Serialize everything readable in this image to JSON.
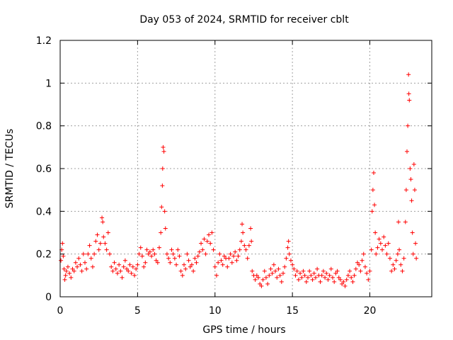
{
  "chart_data": {
    "type": "scatter",
    "title": "Day 053 of 2024, SRMTID for receiver cblt",
    "xlabel": "GPS time / hours",
    "ylabel": "SRMTID / TECUs",
    "xlim": [
      0,
      24
    ],
    "ylim": [
      0,
      1.2
    ],
    "xticks": [
      0,
      5,
      10,
      15,
      20
    ],
    "xtick_labels": [
      "0",
      "5",
      "10",
      "15",
      "20"
    ],
    "yticks": [
      0,
      0.2,
      0.4,
      0.6,
      0.8,
      1,
      1.2
    ],
    "ytick_labels": [
      "0",
      "0.2",
      "0.4",
      "0.6",
      "0.8",
      "1",
      "1.2"
    ],
    "grid": true,
    "marker": "+",
    "series_color": "#ff0000",
    "series": [
      {
        "name": "SRMTID",
        "points": [
          [
            0.05,
            0.17
          ],
          [
            0.1,
            0.22
          ],
          [
            0.15,
            0.25
          ],
          [
            0.2,
            0.19
          ],
          [
            0.25,
            0.13
          ],
          [
            0.3,
            0.08
          ],
          [
            0.35,
            0.1
          ],
          [
            0.4,
            0.12
          ],
          [
            0.5,
            0.14
          ],
          [
            0.6,
            0.11
          ],
          [
            0.7,
            0.09
          ],
          [
            0.8,
            0.13
          ],
          [
            0.9,
            0.12
          ],
          [
            1.0,
            0.16
          ],
          [
            1.1,
            0.14
          ],
          [
            1.2,
            0.18
          ],
          [
            1.3,
            0.15
          ],
          [
            1.4,
            0.12
          ],
          [
            1.5,
            0.2
          ],
          [
            1.6,
            0.16
          ],
          [
            1.7,
            0.13
          ],
          [
            1.8,
            0.2
          ],
          [
            1.9,
            0.24
          ],
          [
            2.0,
            0.18
          ],
          [
            2.1,
            0.14
          ],
          [
            2.2,
            0.2
          ],
          [
            2.3,
            0.26
          ],
          [
            2.4,
            0.29
          ],
          [
            2.5,
            0.22
          ],
          [
            2.6,
            0.25
          ],
          [
            2.7,
            0.37
          ],
          [
            2.75,
            0.35
          ],
          [
            2.8,
            0.28
          ],
          [
            2.9,
            0.25
          ],
          [
            3.0,
            0.22
          ],
          [
            3.1,
            0.3
          ],
          [
            3.2,
            0.2
          ],
          [
            3.3,
            0.14
          ],
          [
            3.4,
            0.12
          ],
          [
            3.5,
            0.16
          ],
          [
            3.6,
            0.13
          ],
          [
            3.7,
            0.11
          ],
          [
            3.8,
            0.15
          ],
          [
            3.9,
            0.12
          ],
          [
            4.0,
            0.09
          ],
          [
            4.1,
            0.14
          ],
          [
            4.2,
            0.17
          ],
          [
            4.3,
            0.13
          ],
          [
            4.4,
            0.12
          ],
          [
            4.5,
            0.15
          ],
          [
            4.6,
            0.11
          ],
          [
            4.7,
            0.14
          ],
          [
            4.8,
            0.1
          ],
          [
            4.9,
            0.13
          ],
          [
            5.0,
            0.15
          ],
          [
            5.1,
            0.2
          ],
          [
            5.2,
            0.23
          ],
          [
            5.3,
            0.19
          ],
          [
            5.4,
            0.14
          ],
          [
            5.5,
            0.16
          ],
          [
            5.6,
            0.22
          ],
          [
            5.7,
            0.2
          ],
          [
            5.8,
            0.21
          ],
          [
            5.9,
            0.19
          ],
          [
            6.0,
            0.22
          ],
          [
            6.1,
            0.2
          ],
          [
            6.2,
            0.17
          ],
          [
            6.3,
            0.16
          ],
          [
            6.4,
            0.23
          ],
          [
            6.5,
            0.3
          ],
          [
            6.55,
            0.42
          ],
          [
            6.6,
            0.52
          ],
          [
            6.62,
            0.6
          ],
          [
            6.65,
            0.7
          ],
          [
            6.7,
            0.68
          ],
          [
            6.75,
            0.4
          ],
          [
            6.8,
            0.32
          ],
          [
            6.9,
            0.2
          ],
          [
            7.0,
            0.18
          ],
          [
            7.1,
            0.16
          ],
          [
            7.2,
            0.22
          ],
          [
            7.3,
            0.2
          ],
          [
            7.4,
            0.18
          ],
          [
            7.5,
            0.15
          ],
          [
            7.6,
            0.22
          ],
          [
            7.7,
            0.19
          ],
          [
            7.8,
            0.12
          ],
          [
            7.9,
            0.1
          ],
          [
            8.0,
            0.15
          ],
          [
            8.1,
            0.13
          ],
          [
            8.2,
            0.2
          ],
          [
            8.3,
            0.17
          ],
          [
            8.4,
            0.14
          ],
          [
            8.5,
            0.15
          ],
          [
            8.6,
            0.12
          ],
          [
            8.7,
            0.18
          ],
          [
            8.8,
            0.16
          ],
          [
            8.9,
            0.19
          ],
          [
            9.0,
            0.21
          ],
          [
            9.1,
            0.25
          ],
          [
            9.2,
            0.22
          ],
          [
            9.3,
            0.27
          ],
          [
            9.4,
            0.2
          ],
          [
            9.5,
            0.26
          ],
          [
            9.6,
            0.29
          ],
          [
            9.7,
            0.25
          ],
          [
            9.8,
            0.3
          ],
          [
            9.9,
            0.22
          ],
          [
            10.0,
            0.14
          ],
          [
            10.1,
            0.1
          ],
          [
            10.2,
            0.16
          ],
          [
            10.3,
            0.2
          ],
          [
            10.4,
            0.17
          ],
          [
            10.5,
            0.15
          ],
          [
            10.6,
            0.19
          ],
          [
            10.7,
            0.18
          ],
          [
            10.8,
            0.14
          ],
          [
            10.9,
            0.18
          ],
          [
            11.0,
            0.2
          ],
          [
            11.1,
            0.16
          ],
          [
            11.2,
            0.19
          ],
          [
            11.3,
            0.21
          ],
          [
            11.4,
            0.17
          ],
          [
            11.5,
            0.19
          ],
          [
            11.6,
            0.22
          ],
          [
            11.7,
            0.26
          ],
          [
            11.75,
            0.34
          ],
          [
            11.8,
            0.3
          ],
          [
            11.9,
            0.24
          ],
          [
            12.0,
            0.22
          ],
          [
            12.1,
            0.18
          ],
          [
            12.2,
            0.24
          ],
          [
            12.3,
            0.32
          ],
          [
            12.35,
            0.26
          ],
          [
            12.4,
            0.12
          ],
          [
            12.5,
            0.1
          ],
          [
            12.6,
            0.08
          ],
          [
            12.7,
            0.1
          ],
          [
            12.8,
            0.09
          ],
          [
            12.9,
            0.06
          ],
          [
            13.0,
            0.05
          ],
          [
            13.1,
            0.08
          ],
          [
            13.2,
            0.12
          ],
          [
            13.3,
            0.09
          ],
          [
            13.4,
            0.06
          ],
          [
            13.5,
            0.1
          ],
          [
            13.6,
            0.13
          ],
          [
            13.7,
            0.11
          ],
          [
            13.8,
            0.15
          ],
          [
            13.9,
            0.12
          ],
          [
            14.0,
            0.09
          ],
          [
            14.1,
            0.13
          ],
          [
            14.2,
            0.1
          ],
          [
            14.3,
            0.07
          ],
          [
            14.4,
            0.11
          ],
          [
            14.5,
            0.14
          ],
          [
            14.6,
            0.18
          ],
          [
            14.7,
            0.23
          ],
          [
            14.75,
            0.26
          ],
          [
            14.8,
            0.2
          ],
          [
            14.9,
            0.17
          ],
          [
            15.0,
            0.15
          ],
          [
            15.1,
            0.13
          ],
          [
            15.2,
            0.1
          ],
          [
            15.3,
            0.12
          ],
          [
            15.4,
            0.08
          ],
          [
            15.5,
            0.11
          ],
          [
            15.6,
            0.09
          ],
          [
            15.7,
            0.12
          ],
          [
            15.8,
            0.1
          ],
          [
            15.9,
            0.07
          ],
          [
            16.0,
            0.09
          ],
          [
            16.1,
            0.12
          ],
          [
            16.2,
            0.1
          ],
          [
            16.3,
            0.08
          ],
          [
            16.4,
            0.11
          ],
          [
            16.5,
            0.09
          ],
          [
            16.6,
            0.13
          ],
          [
            16.7,
            0.1
          ],
          [
            16.8,
            0.07
          ],
          [
            16.9,
            0.1
          ],
          [
            17.0,
            0.12
          ],
          [
            17.1,
            0.09
          ],
          [
            17.2,
            0.11
          ],
          [
            17.3,
            0.08
          ],
          [
            17.4,
            0.1
          ],
          [
            17.5,
            0.13
          ],
          [
            17.6,
            0.09
          ],
          [
            17.7,
            0.07
          ],
          [
            17.8,
            0.11
          ],
          [
            17.9,
            0.12
          ],
          [
            18.0,
            0.09
          ],
          [
            18.1,
            0.08
          ],
          [
            18.2,
            0.06
          ],
          [
            18.3,
            0.07
          ],
          [
            18.4,
            0.05
          ],
          [
            18.5,
            0.08
          ],
          [
            18.6,
            0.1
          ],
          [
            18.7,
            0.12
          ],
          [
            18.8,
            0.09
          ],
          [
            18.9,
            0.07
          ],
          [
            19.0,
            0.1
          ],
          [
            19.1,
            0.13
          ],
          [
            19.2,
            0.16
          ],
          [
            19.3,
            0.15
          ],
          [
            19.4,
            0.12
          ],
          [
            19.5,
            0.17
          ],
          [
            19.6,
            0.2
          ],
          [
            19.7,
            0.14
          ],
          [
            19.8,
            0.11
          ],
          [
            19.9,
            0.08
          ],
          [
            20.0,
            0.12
          ],
          [
            20.1,
            0.22
          ],
          [
            20.15,
            0.4
          ],
          [
            20.2,
            0.5
          ],
          [
            20.25,
            0.58
          ],
          [
            20.3,
            0.43
          ],
          [
            20.35,
            0.3
          ],
          [
            20.4,
            0.2
          ],
          [
            20.5,
            0.23
          ],
          [
            20.6,
            0.27
          ],
          [
            20.7,
            0.25
          ],
          [
            20.8,
            0.22
          ],
          [
            20.9,
            0.28
          ],
          [
            21.0,
            0.24
          ],
          [
            21.1,
            0.2
          ],
          [
            21.2,
            0.25
          ],
          [
            21.3,
            0.18
          ],
          [
            21.4,
            0.12
          ],
          [
            21.5,
            0.15
          ],
          [
            21.6,
            0.13
          ],
          [
            21.7,
            0.17
          ],
          [
            21.8,
            0.2
          ],
          [
            21.85,
            0.35
          ],
          [
            21.9,
            0.22
          ],
          [
            22.0,
            0.15
          ],
          [
            22.1,
            0.12
          ],
          [
            22.2,
            0.18
          ],
          [
            22.3,
            0.35
          ],
          [
            22.35,
            0.5
          ],
          [
            22.4,
            0.68
          ],
          [
            22.45,
            0.8
          ],
          [
            22.5,
            1.04
          ],
          [
            22.52,
            0.95
          ],
          [
            22.55,
            0.92
          ],
          [
            22.6,
            0.6
          ],
          [
            22.65,
            0.55
          ],
          [
            22.7,
            0.45
          ],
          [
            22.75,
            0.3
          ],
          [
            22.8,
            0.2
          ],
          [
            22.85,
            0.62
          ],
          [
            22.9,
            0.5
          ],
          [
            22.95,
            0.25
          ],
          [
            23.0,
            0.18
          ]
        ]
      }
    ]
  }
}
